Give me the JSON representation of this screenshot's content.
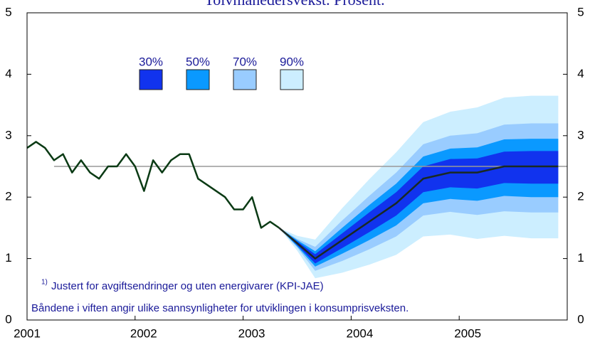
{
  "chart_data": {
    "type": "fan",
    "title": "Tolvmånedersvekst. Prosent.",
    "note_marker": "1)",
    "notes": [
      "Justert for avgiftsendringer og uten energivarer (KPI-JAE)",
      "Båndene i viften angir ulike sannsynligheter for utviklingen i konsumprisveksten."
    ],
    "xlim": [
      2001,
      2006
    ],
    "xticks": [
      2001,
      2002,
      2003,
      2004,
      2005
    ],
    "ylim": [
      0,
      5
    ],
    "yticks": [
      0,
      1,
      2,
      3,
      4,
      5
    ],
    "reference_line": {
      "y": 2.5,
      "x": [
        2001.25,
        2006
      ],
      "color": "#999999"
    },
    "history": {
      "color": "#0a3a14",
      "x": [
        2001,
        2001.083,
        2001.167,
        2001.25,
        2001.333,
        2001.417,
        2001.5,
        2001.583,
        2001.667,
        2001.75,
        2001.833,
        2001.917,
        2002,
        2002.083,
        2002.167,
        2002.25,
        2002.333,
        2002.417,
        2002.5,
        2002.583,
        2002.667,
        2002.75,
        2002.833,
        2002.917,
        2003,
        2003.083,
        2003.167,
        2003.25,
        2003.333
      ],
      "values": [
        2.8,
        2.9,
        2.8,
        2.6,
        2.7,
        2.4,
        2.6,
        2.4,
        2.3,
        2.5,
        2.5,
        2.7,
        2.5,
        2.1,
        2.6,
        2.4,
        2.6,
        2.7,
        2.7,
        2.3,
        2.2,
        2.1,
        2.0,
        1.8,
        1.8,
        2.0,
        1.5,
        1.6,
        1.5
      ]
    },
    "projection": {
      "color": "#1a2a22",
      "x": [
        2003.333,
        2003.5,
        2003.667,
        2003.917,
        2004.167,
        2004.417,
        2004.667,
        2004.917,
        2005.167,
        2005.417,
        2005.667,
        2005.917
      ],
      "values": [
        1.5,
        1.25,
        1.0,
        1.3,
        1.6,
        1.9,
        2.3,
        2.4,
        2.4,
        2.5,
        2.5,
        2.5
      ]
    },
    "series": [
      {
        "name": "90%",
        "color": "#cceeff",
        "lower": [
          1.5,
          1.13,
          0.68,
          0.77,
          0.9,
          1.06,
          1.36,
          1.39,
          1.32,
          1.37,
          1.33,
          1.33
        ],
        "upper": [
          1.5,
          1.37,
          1.31,
          1.82,
          2.29,
          2.73,
          3.22,
          3.39,
          3.46,
          3.62,
          3.65,
          3.65
        ]
      },
      {
        "name": "70%",
        "color": "#99ccff",
        "lower": [
          1.5,
          1.18,
          0.8,
          0.96,
          1.15,
          1.36,
          1.7,
          1.76,
          1.71,
          1.77,
          1.75,
          1.75
        ],
        "upper": [
          1.5,
          1.32,
          1.19,
          1.62,
          2.02,
          2.4,
          2.86,
          3.0,
          3.04,
          3.18,
          3.2,
          3.2
        ]
      },
      {
        "name": "50%",
        "color": "#0a99ff",
        "lower": [
          1.5,
          1.2,
          0.87,
          1.08,
          1.3,
          1.54,
          1.9,
          1.97,
          1.94,
          2.02,
          2.0,
          2.0
        ],
        "upper": [
          1.5,
          1.3,
          1.12,
          1.5,
          1.87,
          2.22,
          2.66,
          2.79,
          2.81,
          2.94,
          2.95,
          2.95
        ]
      },
      {
        "name": "30%",
        "color": "#1133ee",
        "lower": [
          1.5,
          1.22,
          0.92,
          1.17,
          1.43,
          1.7,
          2.08,
          2.16,
          2.14,
          2.23,
          2.22,
          2.22
        ],
        "upper": [
          1.5,
          1.28,
          1.07,
          1.41,
          1.75,
          2.08,
          2.5,
          2.62,
          2.63,
          2.74,
          2.75,
          2.75
        ]
      }
    ]
  }
}
